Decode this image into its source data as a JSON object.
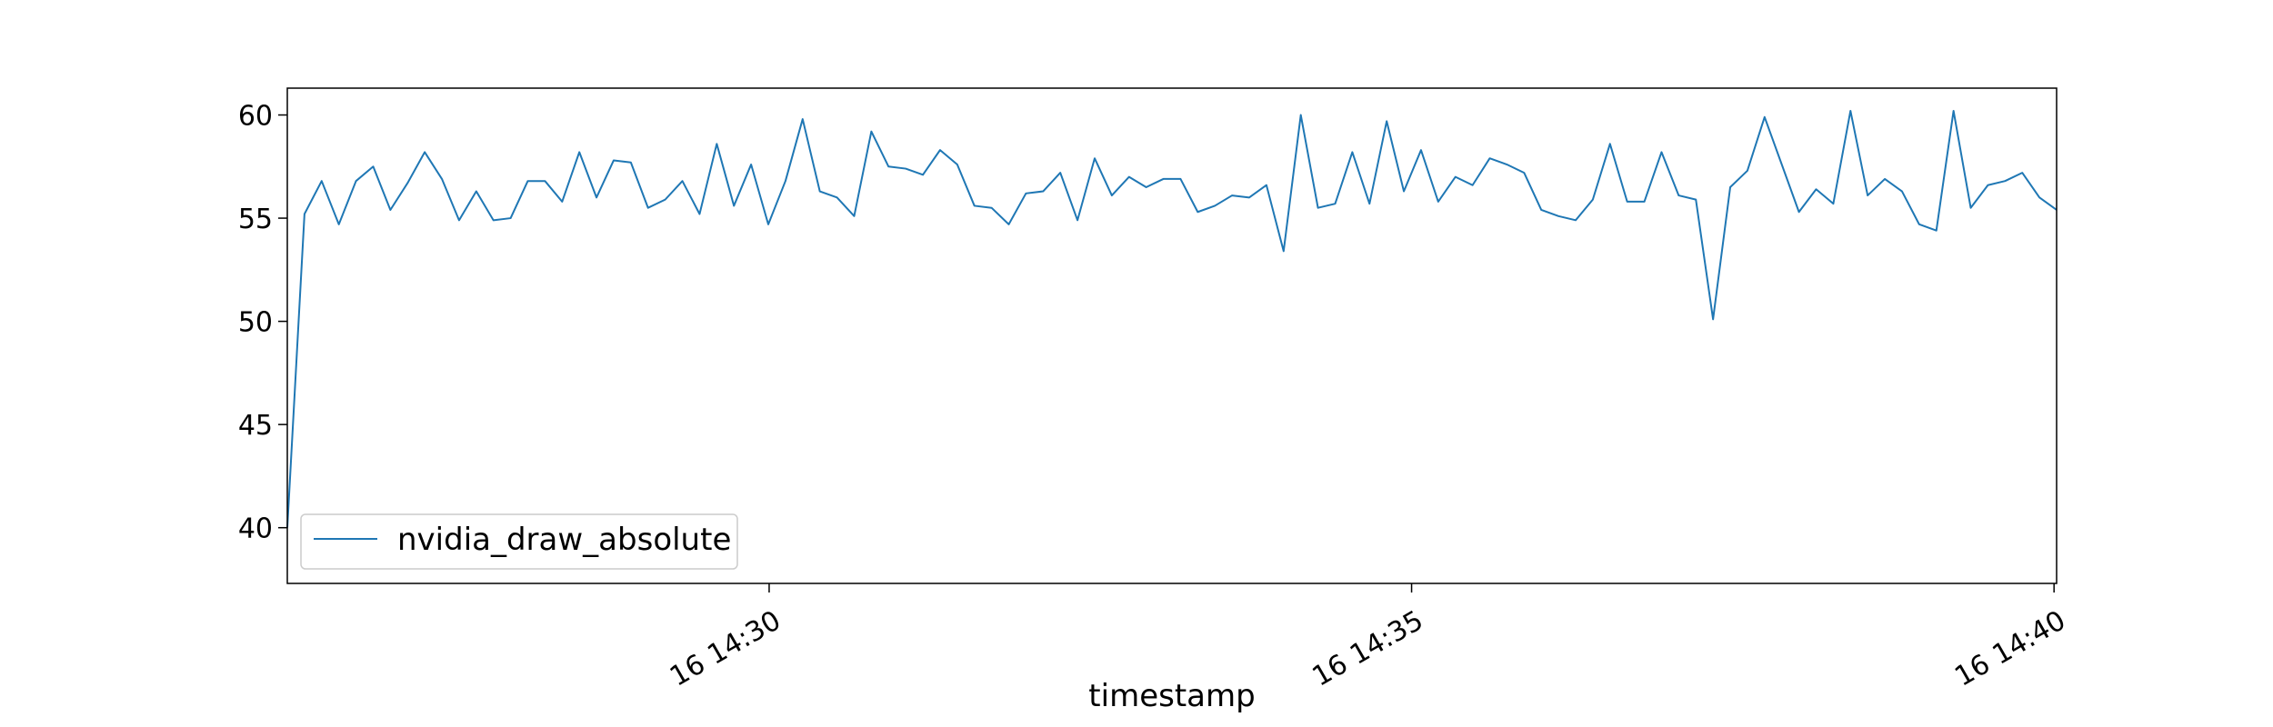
{
  "chart_data": {
    "type": "line",
    "title": "",
    "xlabel": "timestamp",
    "ylabel": "",
    "series_color": "#1f77b4",
    "ylim": [
      37.3,
      61.3
    ],
    "xlim": [
      "16 14:26:15",
      "16 14:40:00+ "
    ],
    "x_domain_minutes": [
      26.25,
      40.02
    ],
    "x_ticks": [
      {
        "label": "16 14:30",
        "minute": 30
      },
      {
        "label": "16 14:35",
        "minute": 35
      },
      {
        "label": "16 14:40",
        "minute": 40
      }
    ],
    "y_ticks": [
      {
        "label": "40",
        "value": 40
      },
      {
        "label": "45",
        "value": 45
      },
      {
        "label": "50",
        "value": 50
      },
      {
        "label": "55",
        "value": 55
      },
      {
        "label": "60",
        "value": 60
      }
    ],
    "grid": false,
    "legend_position": "lower-left",
    "series": [
      {
        "name": "nvidia_draw_absolute",
        "values": [
          40.0,
          55.2,
          56.8,
          54.7,
          56.8,
          57.5,
          55.4,
          56.7,
          58.2,
          56.9,
          54.9,
          56.3,
          54.9,
          55.0,
          56.8,
          56.8,
          55.8,
          58.2,
          56.0,
          57.8,
          57.7,
          55.5,
          55.9,
          56.8,
          55.2,
          58.6,
          55.6,
          57.6,
          54.7,
          56.8,
          59.8,
          56.3,
          56.0,
          55.1,
          59.2,
          57.5,
          57.4,
          57.1,
          58.3,
          57.6,
          55.6,
          55.5,
          54.7,
          56.2,
          56.3,
          57.2,
          54.9,
          57.9,
          56.1,
          57.0,
          56.5,
          56.9,
          56.9,
          55.3,
          55.6,
          56.1,
          56.0,
          56.6,
          53.4,
          60.0,
          55.5,
          55.7,
          58.2,
          55.7,
          59.7,
          56.3,
          58.3,
          55.8,
          57.0,
          56.6,
          57.9,
          57.6,
          57.2,
          55.4,
          55.1,
          54.9,
          55.9,
          58.6,
          55.8,
          55.8,
          58.2,
          56.1,
          55.9,
          50.1,
          56.5,
          57.3,
          59.9,
          57.6,
          55.3,
          56.4,
          55.7,
          60.2,
          56.1,
          56.9,
          56.3,
          54.7,
          54.4,
          60.2,
          55.5,
          56.6,
          56.8,
          57.2,
          56.0,
          55.4
        ]
      }
    ]
  }
}
